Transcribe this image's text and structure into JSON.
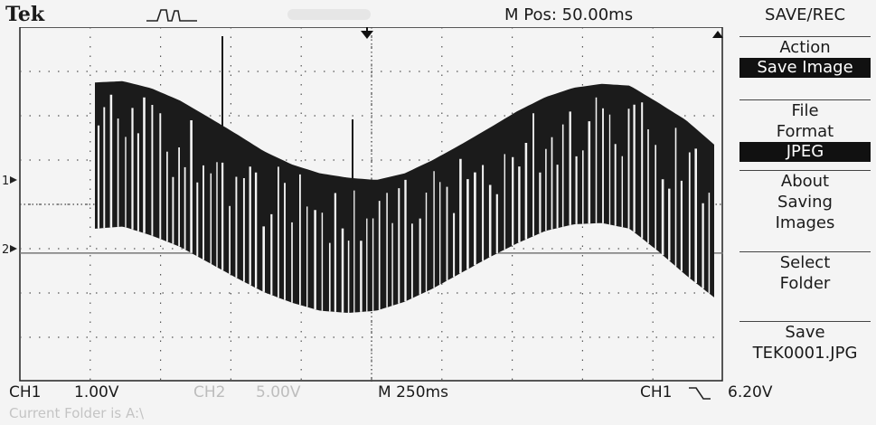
{
  "header": {
    "brand": "Tek",
    "trigger_icon": "trigger-status-icon",
    "mpos": "M Pos: 50.00ms"
  },
  "menu": {
    "title": "SAVE/REC",
    "items": [
      {
        "label_lines": [
          "Action"
        ],
        "value": "Save Image"
      },
      {
        "label_lines": [
          "File",
          "Format"
        ],
        "value": "JPEG"
      },
      {
        "label_lines": [
          "About",
          "Saving",
          "Images"
        ]
      },
      {
        "label_lines": [
          "Select",
          "Folder"
        ]
      },
      {
        "label_lines": [
          "Save",
          "TEK0001.JPG"
        ]
      }
    ]
  },
  "status": {
    "ch1": "CH1",
    "ch1_scale": "1.00V",
    "ch2": "CH2",
    "ch2_scale": "5.00V",
    "timebase": "M 250ms",
    "trig_source": "CH1",
    "trig_slope_icon": "falling-edge-icon",
    "trig_level": "6.20V"
  },
  "footer": {
    "folder": "Current Folder is A:\\"
  },
  "channel_markers": {
    "ch1": "1",
    "ch2": "2"
  },
  "chart_data": {
    "type": "line",
    "x_divisions": 10,
    "y_divisions": 8,
    "series": [
      {
        "channel": "CH1",
        "envelope_upper_div": [
          6.75,
          6.78,
          6.62,
          6.35,
          5.98,
          5.6,
          5.2,
          4.9,
          4.7,
          4.6,
          4.55,
          4.7,
          5.0,
          5.35,
          5.72,
          6.1,
          6.42,
          6.63,
          6.72,
          6.68,
          6.3,
          5.9,
          5.35
        ],
        "envelope_lower_div": [
          3.45,
          3.5,
          3.3,
          3.05,
          2.7,
          2.35,
          2.02,
          1.78,
          1.6,
          1.55,
          1.6,
          1.8,
          2.1,
          2.45,
          2.8,
          3.12,
          3.4,
          3.55,
          3.58,
          3.45,
          2.95,
          2.4,
          1.9
        ]
      },
      {
        "channel": "CH2",
        "level_div": 2.9
      }
    ]
  }
}
